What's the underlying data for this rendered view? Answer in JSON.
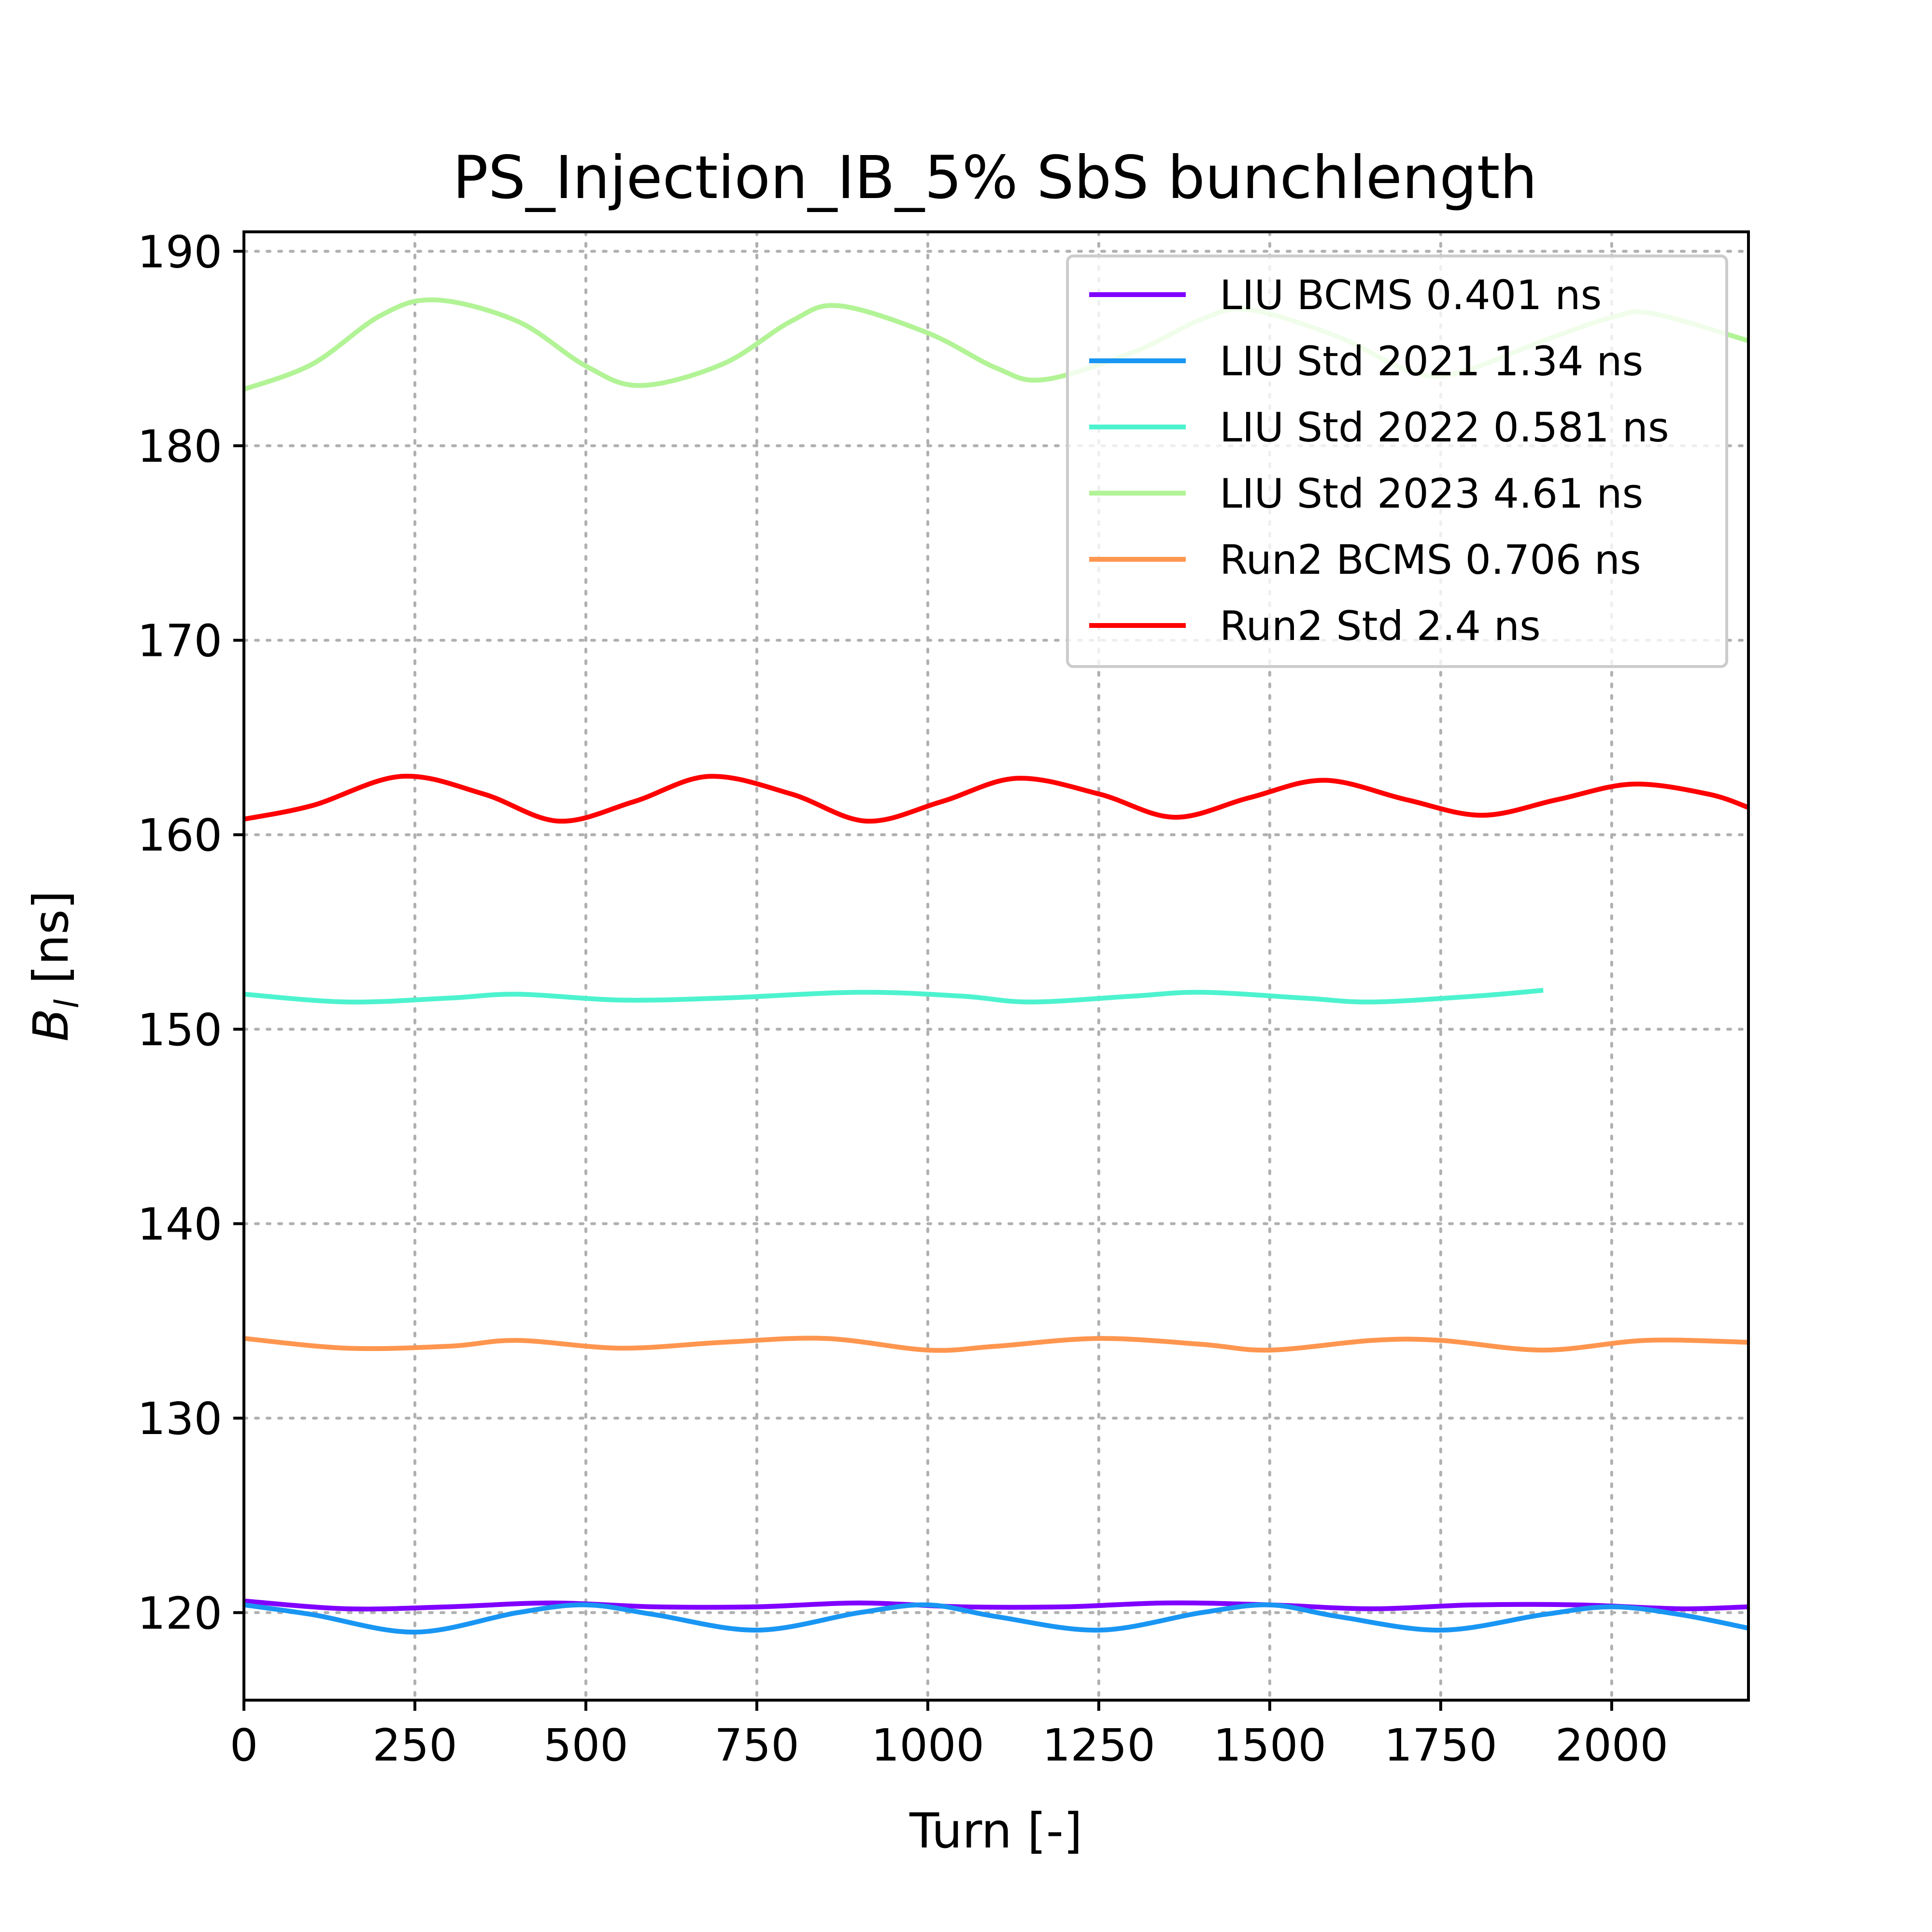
{
  "chart_data": {
    "type": "line",
    "title": "PS_Injection_IB_5% SbS bunchlength",
    "xlabel": "Turn [-]",
    "ylabel_symbol": "B",
    "ylabel_subscript": "l",
    "ylabel_unit": " [ns]",
    "xlim": [
      0,
      2200
    ],
    "ylim": [
      115.5,
      191
    ],
    "xticks": [
      0,
      250,
      500,
      750,
      1000,
      1250,
      1500,
      1750,
      2000
    ],
    "xtick_labels": [
      "0",
      "250",
      "500",
      "750",
      "1000",
      "1250",
      "1500",
      "1750",
      "2000"
    ],
    "yticks": [
      120,
      130,
      140,
      150,
      160,
      170,
      180,
      190
    ],
    "ytick_labels": [
      "120",
      "130",
      "140",
      "150",
      "160",
      "170",
      "180",
      "190"
    ],
    "grid": true,
    "legend_position": "top-right",
    "series": [
      {
        "name": "LIU BCMS 0.401 ns",
        "color": "#8000ff",
        "x": [
          0,
          150,
          300,
          450,
          600,
          750,
          900,
          1050,
          1200,
          1350,
          1500,
          1650,
          1800,
          1950,
          2100,
          2200
        ],
        "y": [
          120.6,
          120.2,
          120.3,
          120.5,
          120.3,
          120.3,
          120.5,
          120.3,
          120.3,
          120.5,
          120.4,
          120.2,
          120.4,
          120.4,
          120.2,
          120.3
        ]
      },
      {
        "name": "LIU Std 2021 1.34 ns",
        "color": "#1996f3",
        "x": [
          0,
          100,
          250,
          400,
          500,
          600,
          750,
          900,
          1000,
          1100,
          1250,
          1400,
          1500,
          1600,
          1750,
          1900,
          2000,
          2100,
          2200
        ],
        "y": [
          120.4,
          119.9,
          119.0,
          120.0,
          120.4,
          119.9,
          119.1,
          120.0,
          120.4,
          119.8,
          119.1,
          120.0,
          120.4,
          119.8,
          119.1,
          119.9,
          120.3,
          119.9,
          119.2
        ]
      },
      {
        "name": "LIU Std 2022 0.581 ns",
        "color": "#4df3ce",
        "x": [
          0,
          150,
          300,
          400,
          550,
          700,
          900,
          1050,
          1150,
          1300,
          1400,
          1550,
          1650,
          1800,
          1900
        ],
        "y": [
          151.8,
          151.4,
          151.6,
          151.8,
          151.5,
          151.6,
          151.9,
          151.7,
          151.4,
          151.7,
          151.9,
          151.6,
          151.4,
          151.7,
          152.0
        ]
      },
      {
        "name": "LIU Std 2023 4.61 ns",
        "color": "#b2f396",
        "x": [
          0,
          100,
          200,
          280,
          400,
          500,
          580,
          700,
          800,
          870,
          1000,
          1100,
          1170,
          1300,
          1400,
          1470,
          1600,
          1700,
          1770,
          1900,
          2000,
          2060,
          2200
        ],
        "y": [
          182.9,
          184.2,
          186.7,
          187.5,
          186.4,
          184.1,
          183.1,
          184.2,
          186.4,
          187.2,
          185.8,
          184.0,
          183.4,
          184.8,
          186.5,
          187.0,
          185.6,
          183.9,
          183.7,
          185.4,
          186.6,
          186.8,
          185.4
        ]
      },
      {
        "name": "Run2 BCMS 0.706 ns",
        "color": "#ff964f",
        "x": [
          0,
          150,
          300,
          400,
          550,
          700,
          850,
          1000,
          1100,
          1250,
          1400,
          1500,
          1650,
          1750,
          1900,
          2050,
          2200
        ],
        "y": [
          134.1,
          133.6,
          133.7,
          134.0,
          133.6,
          133.9,
          134.1,
          133.5,
          133.7,
          134.1,
          133.8,
          133.5,
          134.0,
          134.0,
          133.5,
          134.0,
          133.9
        ]
      },
      {
        "name": "Run2 Std 2.4 ns",
        "color": "#ff0000",
        "x": [
          0,
          100,
          230,
          350,
          460,
          570,
          680,
          800,
          910,
          1020,
          1130,
          1250,
          1360,
          1470,
          1580,
          1700,
          1810,
          1920,
          2030,
          2140,
          2200
        ],
        "y": [
          160.8,
          161.5,
          163.0,
          162.1,
          160.7,
          161.7,
          163.0,
          162.1,
          160.7,
          161.7,
          162.9,
          162.1,
          160.9,
          161.9,
          162.8,
          161.8,
          161.0,
          161.8,
          162.6,
          162.1,
          161.4
        ]
      }
    ]
  }
}
